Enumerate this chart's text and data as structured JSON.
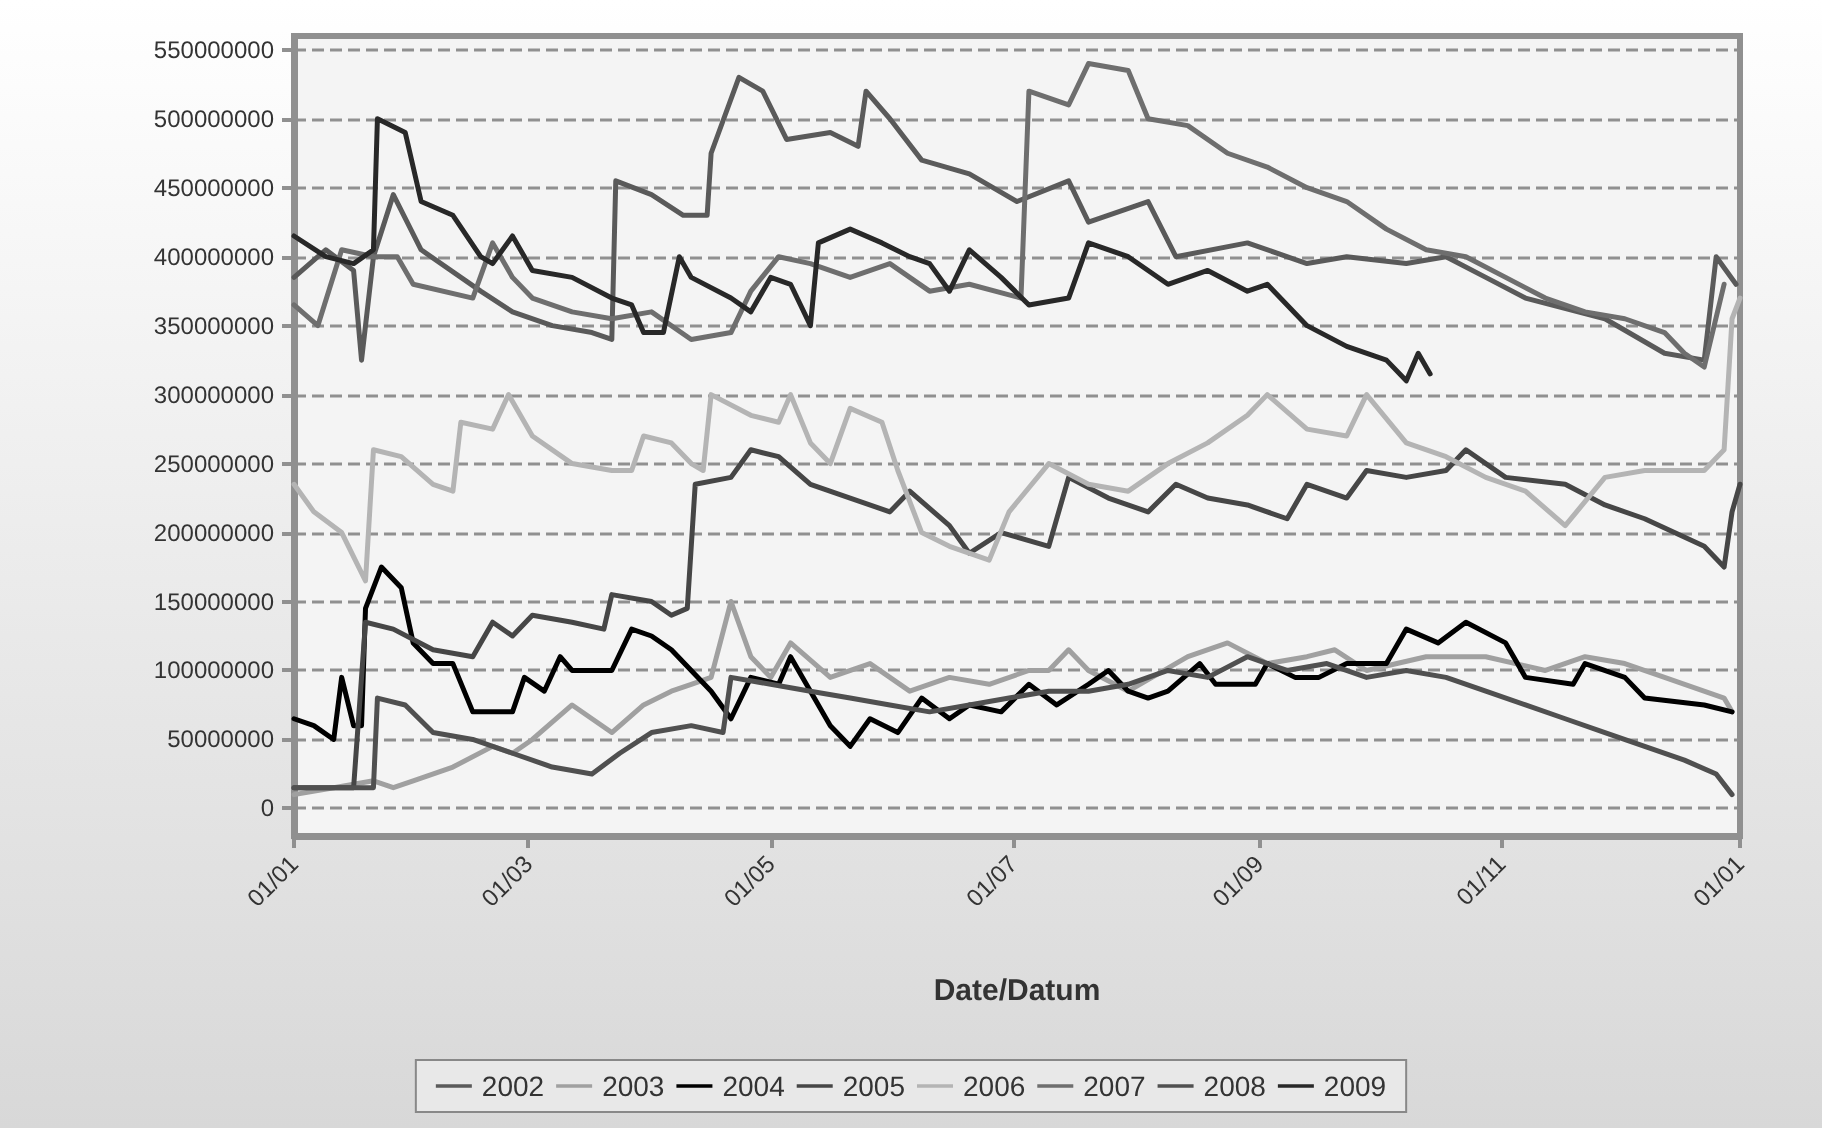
{
  "chart_data": {
    "type": "line",
    "xlabel": "Date/Datum",
    "grid": "y",
    "legend": "bottom",
    "marker": "none",
    "line_style": "solid",
    "xlim": [
      "--01-01",
      "--12-31"
    ],
    "xticks": [
      {
        "value": "--01-01",
        "label": "01/01"
      },
      {
        "value": "--03-01",
        "label": "01/03"
      },
      {
        "value": "--05-01",
        "label": "01/05"
      },
      {
        "value": "--07-01",
        "label": "01/07"
      },
      {
        "value": "--09-01",
        "label": "01/09"
      },
      {
        "value": "--11-01",
        "label": "01/11"
      },
      {
        "value": "--12-31",
        "label": "01/01"
      }
    ],
    "ylim": [
      -20000000,
      560000000
    ],
    "yticks": [
      0,
      50000000,
      100000000,
      150000000,
      200000000,
      250000000,
      300000000,
      350000000,
      400000000,
      450000000,
      500000000,
      550000000
    ],
    "series": [
      {
        "name": "2002",
        "color": "#5a5a5a",
        "x": [
          "--01-01",
          "--01-09",
          "--01-16",
          "--01-18",
          "--01-21",
          "--01-26",
          "--02-02",
          "--02-17",
          "--02-25",
          "--03-07",
          "--03-17",
          "--03-22",
          "--03-23",
          "--04-01",
          "--04-09",
          "--04-15",
          "--04-16",
          "--04-23",
          "--04-29",
          "--05-05",
          "--05-16",
          "--05-23",
          "--05-25",
          "--05-31",
          "--06-08",
          "--06-20",
          "--07-02",
          "--07-15",
          "--07-20",
          "--08-04",
          "--08-11",
          "--08-29",
          "--09-13",
          "--09-23",
          "--10-08",
          "--10-18",
          "--10-28",
          "--11-07",
          "--11-27",
          "--12-12",
          "--12-22",
          "--12-25",
          "--12-30"
        ],
        "values": [
          385000000,
          405000000,
          390000000,
          325000000,
          400000000,
          445000000,
          405000000,
          375000000,
          360000000,
          350000000,
          345000000,
          340000000,
          455000000,
          445000000,
          430000000,
          430000000,
          475000000,
          530000000,
          520000000,
          485000000,
          490000000,
          480000000,
          520000000,
          500000000,
          470000000,
          460000000,
          440000000,
          455000000,
          425000000,
          440000000,
          400000000,
          410000000,
          395000000,
          400000000,
          395000000,
          400000000,
          385000000,
          370000000,
          355000000,
          330000000,
          325000000,
          400000000,
          380000000
        ]
      },
      {
        "name": "2003",
        "color": "#a0a0a0",
        "x": [
          "--01-01",
          "--01-11",
          "--01-21",
          "--01-26",
          "--01-31",
          "--02-10",
          "--02-20",
          "--02-25",
          "--03-02",
          "--03-12",
          "--03-17",
          "--03-22",
          "--03-30",
          "--04-06",
          "--04-11",
          "--04-16",
          "--04-21",
          "--04-26",
          "--05-01",
          "--05-06",
          "--05-16",
          "--05-26",
          "--06-05",
          "--06-15",
          "--06-25",
          "--07-05",
          "--07-10",
          "--07-15",
          "--07-20",
          "--07-30",
          "--08-14",
          "--08-24",
          "--09-03",
          "--09-13",
          "--09-20",
          "--09-28",
          "--10-13",
          "--10-28",
          "--11-12",
          "--11-22",
          "--12-02",
          "--12-12",
          "--12-27",
          "--12-29"
        ],
        "values": [
          10000000,
          15000000,
          20000000,
          15000000,
          20000000,
          30000000,
          45000000,
          40000000,
          50000000,
          75000000,
          65000000,
          55000000,
          75000000,
          85000000,
          90000000,
          95000000,
          150000000,
          110000000,
          95000000,
          120000000,
          95000000,
          105000000,
          85000000,
          95000000,
          90000000,
          100000000,
          100000000,
          115000000,
          100000000,
          85000000,
          110000000,
          120000000,
          105000000,
          110000000,
          115000000,
          100000000,
          110000000,
          110000000,
          100000000,
          110000000,
          105000000,
          95000000,
          80000000,
          70000000
        ]
      },
      {
        "name": "2004",
        "color": "#000000",
        "x": [
          "--01-01",
          "--01-06",
          "--01-11",
          "--01-13",
          "--01-16",
          "--01-18",
          "--01-19",
          "--01-23",
          "--01-28",
          "--01-31",
          "--02-05",
          "--02-10",
          "--02-15",
          "--02-25",
          "--02-28",
          "--03-05",
          "--03-09",
          "--03-12",
          "--03-22",
          "--03-27",
          "--04-01",
          "--04-06",
          "--04-11",
          "--04-16",
          "--04-21",
          "--04-26",
          "--05-03",
          "--05-06",
          "--05-11",
          "--05-16",
          "--05-21",
          "--05-26",
          "--06-02",
          "--06-08",
          "--06-15",
          "--06-20",
          "--06-28",
          "--07-05",
          "--07-12",
          "--07-20",
          "--07-25",
          "--07-30",
          "--08-04",
          "--08-09",
          "--08-17",
          "--08-21",
          "--08-31",
          "--09-03",
          "--09-10",
          "--09-16",
          "--09-23",
          "--10-03",
          "--10-08",
          "--10-16",
          "--10-23",
          "--11-02",
          "--11-07",
          "--11-19",
          "--11-22",
          "--12-02",
          "--12-07",
          "--12-22",
          "--12-29"
        ],
        "values": [
          65000000,
          60000000,
          50000000,
          95000000,
          60000000,
          60000000,
          145000000,
          175000000,
          160000000,
          120000000,
          105000000,
          105000000,
          70000000,
          70000000,
          95000000,
          85000000,
          110000000,
          100000000,
          100000000,
          130000000,
          125000000,
          115000000,
          100000000,
          85000000,
          65000000,
          95000000,
          90000000,
          110000000,
          85000000,
          60000000,
          45000000,
          65000000,
          55000000,
          80000000,
          65000000,
          75000000,
          70000000,
          90000000,
          75000000,
          90000000,
          100000000,
          85000000,
          80000000,
          85000000,
          105000000,
          90000000,
          90000000,
          105000000,
          95000000,
          95000000,
          105000000,
          105000000,
          130000000,
          120000000,
          135000000,
          120000000,
          95000000,
          90000000,
          105000000,
          95000000,
          80000000,
          75000000,
          70000000
        ]
      },
      {
        "name": "2005",
        "color": "#464646",
        "x": [
          "--01-01",
          "--01-06",
          "--01-16",
          "--01-19",
          "--01-26",
          "--02-05",
          "--02-15",
          "--02-20",
          "--02-25",
          "--03-02",
          "--03-12",
          "--03-20",
          "--03-22",
          "--04-01",
          "--04-06",
          "--04-10",
          "--04-12",
          "--04-21",
          "--04-26",
          "--05-03",
          "--05-11",
          "--05-21",
          "--05-31",
          "--06-05",
          "--06-15",
          "--06-20",
          "--06-28",
          "--07-10",
          "--07-15",
          "--07-25",
          "--08-04",
          "--08-11",
          "--08-19",
          "--08-29",
          "--09-08",
          "--09-13",
          "--09-23",
          "--09-28",
          "--10-08",
          "--10-18",
          "--10-23",
          "--11-02",
          "--11-17",
          "--11-27",
          "--12-07",
          "--12-22",
          "--12-27",
          "--12-29",
          "--12-31"
        ],
        "values": [
          15000000,
          15000000,
          15000000,
          135000000,
          130000000,
          115000000,
          110000000,
          135000000,
          125000000,
          140000000,
          135000000,
          130000000,
          155000000,
          150000000,
          140000000,
          145000000,
          235000000,
          240000000,
          260000000,
          255000000,
          235000000,
          225000000,
          215000000,
          230000000,
          205000000,
          185000000,
          200000000,
          190000000,
          240000000,
          225000000,
          215000000,
          235000000,
          225000000,
          220000000,
          210000000,
          235000000,
          225000000,
          245000000,
          240000000,
          245000000,
          260000000,
          240000000,
          235000000,
          220000000,
          210000000,
          190000000,
          175000000,
          215000000,
          235000000
        ]
      },
      {
        "name": "2006",
        "color": "#b4b4b4",
        "x": [
          "--01-01",
          "--01-06",
          "--01-13",
          "--01-19",
          "--01-21",
          "--01-28",
          "--02-05",
          "--02-10",
          "--02-12",
          "--02-20",
          "--02-24",
          "--03-02",
          "--03-12",
          "--03-22",
          "--03-27",
          "--03-30",
          "--04-06",
          "--04-11",
          "--04-14",
          "--04-16",
          "--04-26",
          "--05-03",
          "--05-06",
          "--05-11",
          "--05-16",
          "--05-21",
          "--05-29",
          "--06-02",
          "--06-08",
          "--06-15",
          "--06-25",
          "--06-30",
          "--07-10",
          "--07-20",
          "--07-30",
          "--08-09",
          "--08-19",
          "--08-29",
          "--09-03",
          "--09-13",
          "--09-23",
          "--09-28",
          "--10-08",
          "--10-18",
          "--10-28",
          "--11-07",
          "--11-17",
          "--11-27",
          "--12-07",
          "--12-22",
          "--12-27",
          "--12-29",
          "--12-31"
        ],
        "values": [
          235000000,
          215000000,
          200000000,
          165000000,
          260000000,
          255000000,
          235000000,
          230000000,
          280000000,
          275000000,
          300000000,
          270000000,
          250000000,
          245000000,
          245000000,
          270000000,
          265000000,
          250000000,
          245000000,
          300000000,
          285000000,
          280000000,
          300000000,
          265000000,
          250000000,
          290000000,
          280000000,
          245000000,
          200000000,
          190000000,
          180000000,
          215000000,
          250000000,
          235000000,
          230000000,
          250000000,
          265000000,
          285000000,
          300000000,
          275000000,
          270000000,
          300000000,
          265000000,
          255000000,
          240000000,
          230000000,
          205000000,
          240000000,
          245000000,
          245000000,
          260000000,
          355000000,
          370000000
        ]
      },
      {
        "name": "2007",
        "color": "#6e6e6e",
        "x": [
          "--01-01",
          "--01-07",
          "--01-13",
          "--01-21",
          "--01-27",
          "--01-31",
          "--02-15",
          "--02-20",
          "--02-25",
          "--03-02",
          "--03-12",
          "--03-22",
          "--04-01",
          "--04-11",
          "--04-21",
          "--04-26",
          "--05-03",
          "--05-11",
          "--05-21",
          "--05-31",
          "--06-10",
          "--06-20",
          "--07-03",
          "--07-05",
          "--07-15",
          "--07-20",
          "--07-30",
          "--08-04",
          "--08-14",
          "--08-24",
          "--09-03",
          "--09-13",
          "--09-23",
          "--10-03",
          "--10-13",
          "--10-23",
          "--11-02",
          "--11-12",
          "--11-22",
          "--12-02",
          "--12-12",
          "--12-17",
          "--12-22",
          "--12-27"
        ],
        "values": [
          365000000,
          350000000,
          405000000,
          400000000,
          400000000,
          380000000,
          370000000,
          410000000,
          385000000,
          370000000,
          360000000,
          355000000,
          360000000,
          340000000,
          345000000,
          375000000,
          400000000,
          395000000,
          385000000,
          395000000,
          375000000,
          380000000,
          370000000,
          520000000,
          510000000,
          540000000,
          535000000,
          500000000,
          495000000,
          475000000,
          465000000,
          450000000,
          440000000,
          420000000,
          405000000,
          400000000,
          385000000,
          370000000,
          360000000,
          355000000,
          345000000,
          330000000,
          320000000,
          380000000
        ]
      },
      {
        "name": "2008",
        "color": "#505050",
        "x": [
          "--01-01",
          "--01-21",
          "--01-22",
          "--01-29",
          "--02-05",
          "--02-15",
          "--02-25",
          "--03-07",
          "--03-17",
          "--03-24",
          "--04-01",
          "--04-11",
          "--04-19",
          "--04-21",
          "--05-01",
          "--05-11",
          "--05-21",
          "--05-31",
          "--06-10",
          "--06-20",
          "--06-30",
          "--07-10",
          "--07-20",
          "--07-30",
          "--08-09",
          "--08-19",
          "--08-29",
          "--09-08",
          "--09-18",
          "--09-28",
          "--10-08",
          "--10-18",
          "--10-28",
          "--11-07",
          "--11-17",
          "--11-27",
          "--12-07",
          "--12-17",
          "--12-25",
          "--12-29"
        ],
        "values": [
          15000000,
          15000000,
          80000000,
          75000000,
          55000000,
          50000000,
          40000000,
          30000000,
          25000000,
          40000000,
          55000000,
          60000000,
          55000000,
          95000000,
          90000000,
          85000000,
          80000000,
          75000000,
          70000000,
          75000000,
          80000000,
          85000000,
          85000000,
          90000000,
          100000000,
          95000000,
          110000000,
          100000000,
          105000000,
          95000000,
          100000000,
          95000000,
          85000000,
          75000000,
          65000000,
          55000000,
          45000000,
          35000000,
          25000000,
          10000000
        ]
      },
      {
        "name": "2009",
        "color": "#282828",
        "x": [
          "--01-01",
          "--01-09",
          "--01-16",
          "--01-21",
          "--01-22",
          "--01-29",
          "--02-02",
          "--02-10",
          "--02-17",
          "--02-20",
          "--02-25",
          "--03-02",
          "--03-12",
          "--03-22",
          "--03-27",
          "--03-30",
          "--04-04",
          "--04-08",
          "--04-11",
          "--04-21",
          "--04-26",
          "--05-01",
          "--05-06",
          "--05-11",
          "--05-13",
          "--05-21",
          "--05-29",
          "--06-05",
          "--06-10",
          "--06-15",
          "--06-20",
          "--06-28",
          "--07-05",
          "--07-15",
          "--07-20",
          "--07-30",
          "--08-09",
          "--08-19",
          "--08-29",
          "--09-03",
          "--09-13",
          "--09-23",
          "--10-03",
          "--10-08",
          "--10-11",
          "--10-14"
        ],
        "values": [
          415000000,
          400000000,
          395000000,
          405000000,
          500000000,
          490000000,
          440000000,
          430000000,
          400000000,
          395000000,
          415000000,
          390000000,
          385000000,
          370000000,
          365000000,
          345000000,
          345000000,
          400000000,
          385000000,
          370000000,
          360000000,
          385000000,
          380000000,
          350000000,
          410000000,
          420000000,
          410000000,
          400000000,
          395000000,
          375000000,
          405000000,
          385000000,
          365000000,
          370000000,
          410000000,
          400000000,
          380000000,
          390000000,
          375000000,
          380000000,
          350000000,
          335000000,
          325000000,
          310000000,
          330000000,
          315000000
        ]
      }
    ]
  }
}
